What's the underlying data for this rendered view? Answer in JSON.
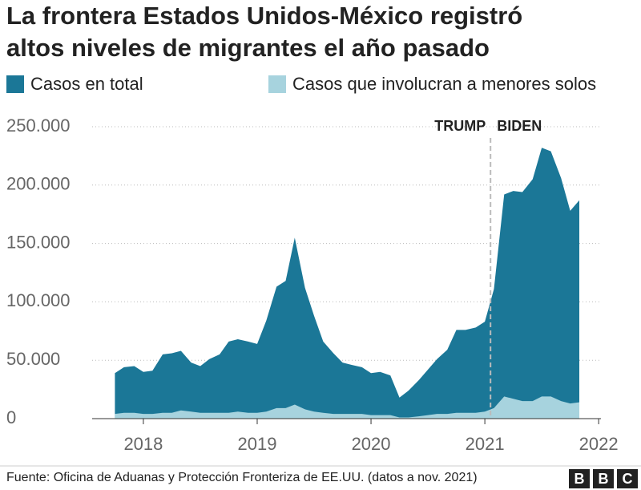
{
  "chart_data": {
    "type": "area",
    "title": [
      "La frontera Estados Unidos-México registró",
      "altos niveles de migrantes el año pasado"
    ],
    "x": [
      2017.75,
      2017.83,
      2017.92,
      2018,
      2018.08,
      2018.17,
      2018.25,
      2018.33,
      2018.42,
      2018.5,
      2018.58,
      2018.67,
      2018.75,
      2018.83,
      2018.92,
      2019,
      2019.08,
      2019.17,
      2019.25,
      2019.33,
      2019.42,
      2019.5,
      2019.58,
      2019.67,
      2019.75,
      2019.83,
      2019.92,
      2020,
      2020.08,
      2020.17,
      2020.25,
      2020.33,
      2020.42,
      2020.5,
      2020.58,
      2020.67,
      2020.75,
      2020.83,
      2020.92,
      2021,
      2021.08,
      2021.17,
      2021.25,
      2021.33,
      2021.42,
      2021.5,
      2021.58,
      2021.67,
      2021.75,
      2021.83
    ],
    "series": [
      {
        "name": "Casos en total",
        "color": "#1b7797",
        "values": [
          39000,
          44000,
          45000,
          40000,
          41000,
          55000,
          56000,
          58000,
          48000,
          45000,
          51000,
          55000,
          66000,
          68000,
          66000,
          64000,
          84000,
          113000,
          118000,
          155000,
          112000,
          88000,
          66000,
          56000,
          48000,
          46000,
          44000,
          39000,
          40000,
          37000,
          18000,
          24000,
          33000,
          42000,
          51000,
          59000,
          76000,
          76000,
          78000,
          83000,
          111000,
          192000,
          195000,
          194000,
          205000,
          232000,
          229000,
          206000,
          178000,
          187000
        ]
      },
      {
        "name": "Casos que involucran a menores solos",
        "color": "#a7d3de",
        "values": [
          4000,
          5000,
          5000,
          4000,
          4000,
          5000,
          5000,
          7000,
          6000,
          5000,
          5000,
          5000,
          5000,
          6000,
          5000,
          5000,
          6000,
          9000,
          9000,
          12000,
          8000,
          6000,
          5000,
          4000,
          4000,
          4000,
          4000,
          3000,
          3000,
          3000,
          1000,
          1000,
          2000,
          3000,
          4000,
          4000,
          5000,
          5000,
          5000,
          6000,
          9000,
          19000,
          17000,
          15000,
          15000,
          19000,
          19000,
          15000,
          13000,
          14000
        ]
      }
    ],
    "xlim": [
      2017.55,
      2022.02
    ],
    "xticks": [
      2018,
      2019,
      2020,
      2021,
      2022
    ],
    "ylim": [
      0,
      250000
    ],
    "yticks": [
      {
        "value": 0,
        "label": "0"
      },
      {
        "value": 50000,
        "label": "50.000"
      },
      {
        "value": 100000,
        "label": "100.000"
      },
      {
        "value": 150000,
        "label": "150.000"
      },
      {
        "value": 200000,
        "label": "200.000"
      },
      {
        "value": 250000,
        "label": "250.000"
      }
    ],
    "grid": true,
    "divider_x": 2021.05,
    "annotations": [
      "TRUMP",
      "BIDEN"
    ],
    "source": "Fuente: Oficina de Aduanas y Protección Fronteriza de EE.UU. (datos a nov. 2021)",
    "logo": [
      "B",
      "B",
      "C"
    ]
  }
}
